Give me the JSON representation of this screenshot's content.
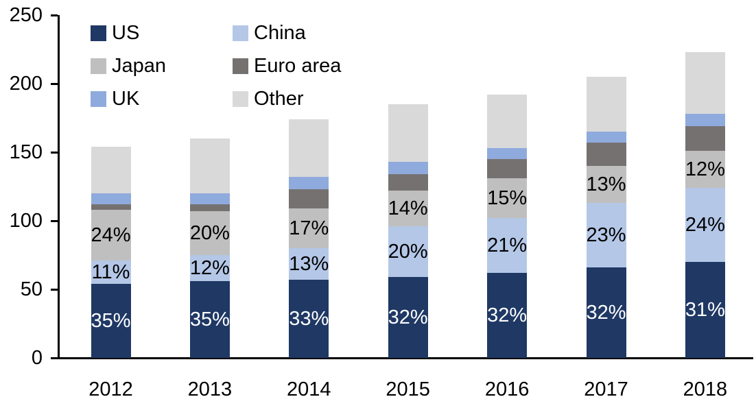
{
  "chart_data": {
    "type": "bar",
    "stacked": true,
    "title": "",
    "xlabel": "",
    "ylabel": "",
    "categories": [
      "2012",
      "2013",
      "2014",
      "2015",
      "2016",
      "2017",
      "2018"
    ],
    "series": [
      {
        "name": "US",
        "color": "#1F3864",
        "values": [
          54,
          56,
          57,
          59,
          62,
          66,
          70
        ],
        "labels": [
          "35%",
          "35%",
          "33%",
          "32%",
          "32%",
          "32%",
          "31%"
        ],
        "label_color": "#FFFFFF"
      },
      {
        "name": "China",
        "color": "#B4C7E7",
        "values": [
          17,
          19,
          23,
          37,
          40,
          47,
          54
        ],
        "labels": [
          "11%",
          "12%",
          "13%",
          "20%",
          "21%",
          "23%",
          "24%"
        ],
        "label_color": "#000000"
      },
      {
        "name": "Japan",
        "color": "#BFBFBF",
        "values": [
          37,
          32,
          29,
          26,
          29,
          27,
          27
        ],
        "labels": [
          "24%",
          "20%",
          "17%",
          "14%",
          "15%",
          "13%",
          "12%"
        ],
        "label_color": "#000000"
      },
      {
        "name": "Euro area",
        "color": "#767171",
        "values": [
          4,
          5,
          14,
          12,
          14,
          17,
          18
        ],
        "labels": null,
        "label_color": null
      },
      {
        "name": "UK",
        "color": "#8FAADC",
        "values": [
          8,
          8,
          9,
          9,
          8,
          8,
          9
        ],
        "labels": null,
        "label_color": null
      },
      {
        "name": "Other",
        "color": "#D9D9D9",
        "values": [
          34,
          40,
          42,
          42,
          39,
          40,
          45
        ],
        "labels": null,
        "label_color": null
      }
    ],
    "totals": [
      154,
      160,
      174,
      185,
      192,
      205,
      223
    ],
    "ylim": [
      0,
      250
    ],
    "yticks": [
      0,
      50,
      100,
      150,
      200,
      250
    ],
    "grid": false,
    "legend_position": "top-left",
    "legend_columns": 2,
    "axis_color": "#000000",
    "background_color": "#FFFFFF"
  }
}
